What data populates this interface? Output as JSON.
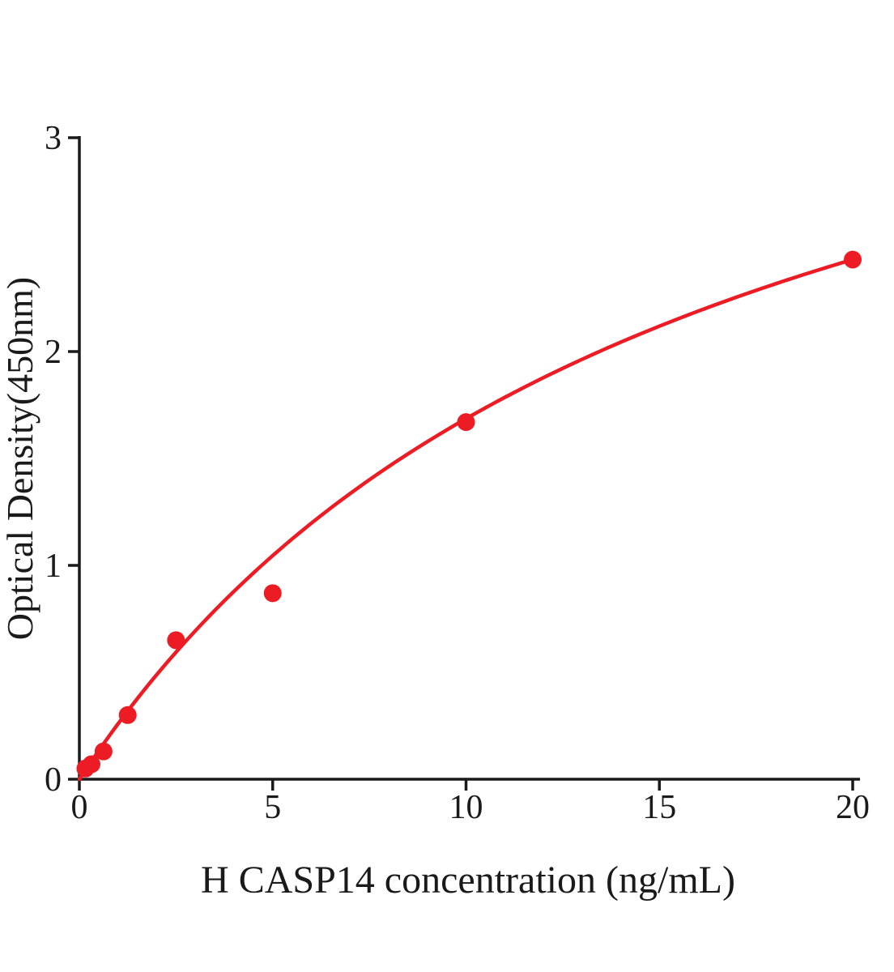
{
  "chart_data": {
    "type": "scatter",
    "title": "",
    "xlabel": "H CASP14 concentration (ng/mL)",
    "ylabel": "Optical Density(450nm)",
    "xlim": [
      0,
      20
    ],
    "ylim": [
      0,
      3
    ],
    "xticks": [
      0,
      5,
      10,
      15,
      20
    ],
    "yticks": [
      0,
      1,
      2,
      3
    ],
    "grid": false,
    "legend": "none",
    "point_color": "#ed1c24",
    "curve_color": "#ed1c24",
    "axis_color": "#1a1a1a",
    "points": [
      {
        "x": 0.156,
        "y": 0.05
      },
      {
        "x": 0.313,
        "y": 0.07
      },
      {
        "x": 0.625,
        "y": 0.13
      },
      {
        "x": 1.25,
        "y": 0.3
      },
      {
        "x": 2.5,
        "y": 0.65
      },
      {
        "x": 5,
        "y": 0.87
      },
      {
        "x": 10,
        "y": 1.67
      },
      {
        "x": 20,
        "y": 2.43
      }
    ],
    "fit_curve": {
      "model": "michaelis_menten",
      "vmax": 4.35,
      "km": 15.8,
      "x_start": 0,
      "x_end": 20
    }
  }
}
